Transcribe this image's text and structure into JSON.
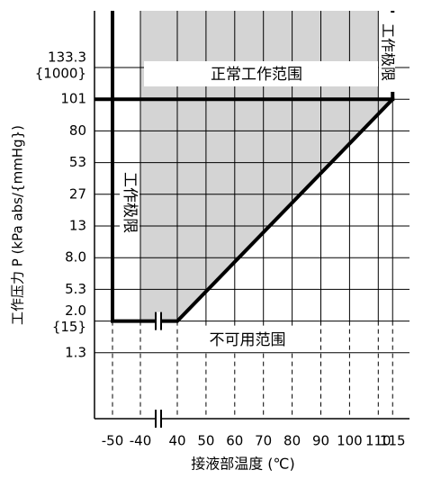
{
  "chart_data": {
    "type": "range-diagram",
    "y_axis_label": "工作压力 P (kPa abs/{mmHg})",
    "x_axis_label": "接液部温度 (℃)",
    "yticks": [
      {
        "value": 133.3,
        "label": "133.3",
        "note": "{1000}"
      },
      101,
      80,
      53,
      27,
      13,
      {
        "value": 8,
        "label": "8.0"
      },
      5.3,
      {
        "value": 2,
        "label": "2.0",
        "note": "{15}"
      },
      1.3
    ],
    "xticks": [
      -50,
      -40,
      40,
      50,
      60,
      70,
      80,
      90,
      100,
      110,
      115
    ],
    "boundary": {
      "x": [
        -50,
        40,
        115
      ],
      "y": [
        2,
        2,
        101
      ]
    },
    "upper_limit": 101,
    "shaded_x": [
      -40,
      110
    ],
    "normal_label": "正常工作范围",
    "limit_label": "工作极限",
    "unusable_label": "不可用范围",
    "shade_color": "#d4d4d4"
  }
}
